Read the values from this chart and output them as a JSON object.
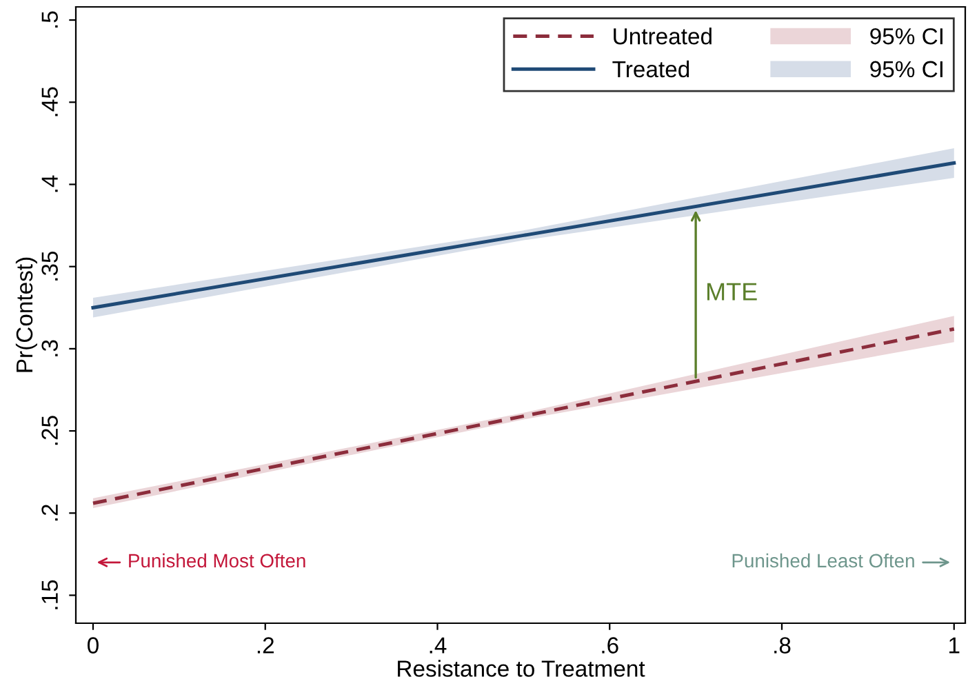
{
  "chart_data": {
    "type": "line",
    "xlabel": "Resistance to Treatment",
    "ylabel": "Pr(Contest)",
    "xlim": [
      -0.02,
      1.013
    ],
    "ylim": [
      0.133,
      0.508
    ],
    "xticks": [
      0,
      {
        "value": 0.2,
        "label": ".2"
      },
      {
        "value": 0.4,
        "label": ".4"
      },
      {
        "value": 0.6,
        "label": ".6"
      },
      {
        "value": 0.8,
        "label": ".8"
      },
      1
    ],
    "yticks": [
      {
        "value": 0.15,
        "label": ".15"
      },
      {
        "value": 0.2,
        "label": ".2"
      },
      {
        "value": 0.25,
        "label": ".25"
      },
      {
        "value": 0.3,
        "label": ".3"
      },
      {
        "value": 0.35,
        "label": ".35"
      },
      {
        "value": 0.4,
        "label": ".4"
      },
      {
        "value": 0.45,
        "label": ".45"
      },
      {
        "value": 0.5,
        "label": ".5"
      }
    ],
    "x": [
      0,
      0.5,
      1
    ],
    "series": [
      {
        "name": "Untreated",
        "type": "line",
        "color": "#8c2d3c",
        "line_style": "dashed",
        "values": [
          0.206,
          0.259,
          0.312
        ],
        "lower": [
          0.203,
          0.257,
          0.304
        ],
        "upper": [
          0.209,
          0.261,
          0.32
        ]
      },
      {
        "name": "Treated",
        "type": "line",
        "color": "#1f4a76",
        "line_style": "solid",
        "values": [
          0.325,
          0.369,
          0.413
        ],
        "lower": [
          0.319,
          0.366,
          0.404
        ],
        "upper": [
          0.331,
          0.372,
          0.422
        ]
      }
    ],
    "annotations": [
      "MTE",
      "95% CI",
      "95% CI",
      "Punished Most Often",
      "Punished Least Often"
    ],
    "legend": "top right",
    "grid": false
  }
}
